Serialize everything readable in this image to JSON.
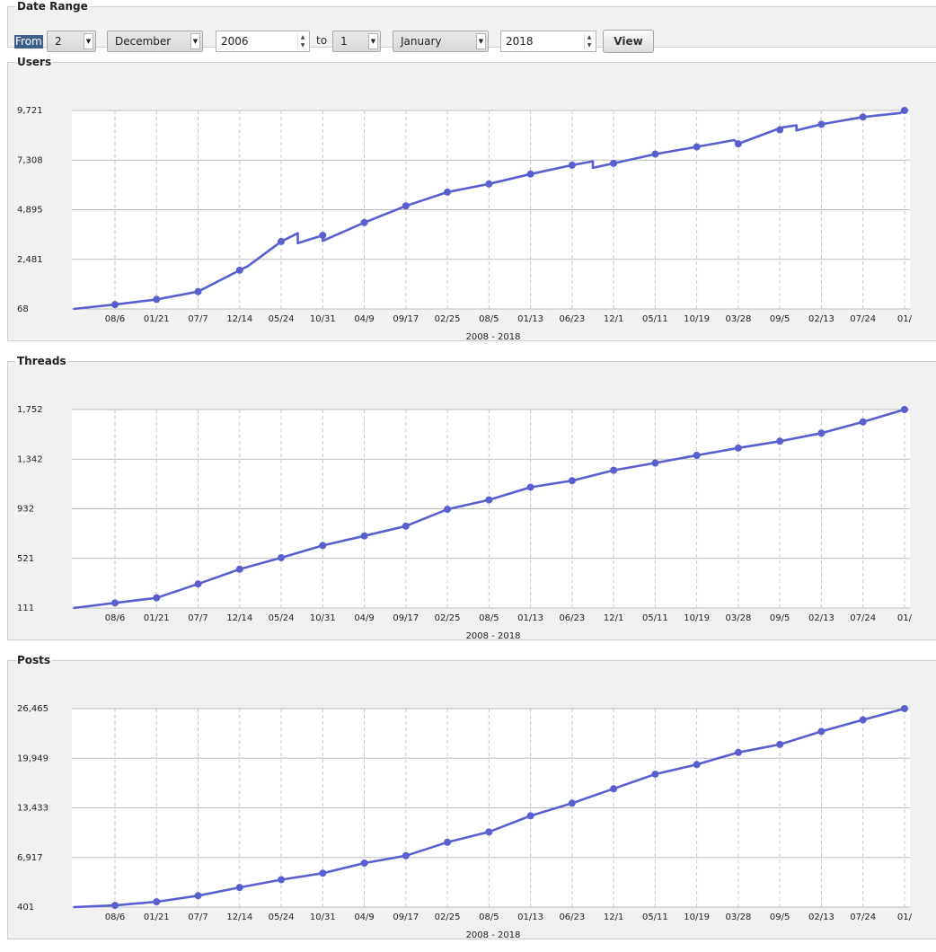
{
  "date_range": {
    "title": "Date Range",
    "from_label": "From",
    "from_day": "2",
    "from_month": "December",
    "from_year": "2006",
    "to_label": "to",
    "to_day": "1",
    "to_month": "January",
    "to_year": "2018",
    "view_label": "View"
  },
  "colors": {
    "series": "#5a5fcf",
    "panel_bg": "#f1f1f1"
  },
  "icons": {
    "dropdown": "chevron-down-icon",
    "spinner": "spin-arrows-icon"
  },
  "chart_data": [
    {
      "type": "line",
      "title": "Users",
      "xlabel": "2008 - 2018",
      "x_ticks": [
        "08/6",
        "01/21",
        "07/7",
        "12/14",
        "05/24",
        "10/31",
        "04/9",
        "09/17",
        "02/25",
        "08/5",
        "01/13",
        "06/23",
        "12/1",
        "05/11",
        "10/19",
        "03/28",
        "09/5",
        "02/13",
        "07/24",
        "01/"
      ],
      "y_ticks": [
        "68",
        "2,481",
        "4,895",
        "7,308",
        "9,721"
      ],
      "ylim": [
        68,
        9721
      ],
      "grid": true,
      "series": [
        {
          "x": [
            -1,
            0,
            1,
            2,
            3,
            3.2,
            4,
            4.4,
            4.4,
            5,
            5,
            6,
            7,
            8,
            9,
            10,
            11,
            11.5,
            11.5,
            12,
            13,
            14,
            14.9,
            15,
            15.9,
            16,
            16.4,
            16.4,
            17,
            18,
            18.9,
            19
          ],
          "y": [
            68,
            280,
            530,
            910,
            1950,
            2150,
            3350,
            3750,
            3270,
            3650,
            3380,
            4270,
            5080,
            5750,
            6150,
            6630,
            7060,
            7250,
            6930,
            7150,
            7600,
            7950,
            8280,
            8100,
            8780,
            8880,
            9000,
            8750,
            9050,
            9400,
            9600,
            9721
          ],
          "markers": [
            [
              0,
              280
            ],
            [
              1,
              530
            ],
            [
              2,
              910
            ],
            [
              3,
              1950
            ],
            [
              4,
              3350
            ],
            [
              5,
              3650
            ],
            [
              6,
              4270
            ],
            [
              7,
              5080
            ],
            [
              8,
              5750
            ],
            [
              9,
              6150
            ],
            [
              10,
              6630
            ],
            [
              11,
              7060
            ],
            [
              12,
              7150
            ],
            [
              13,
              7600
            ],
            [
              14,
              7950
            ],
            [
              15,
              8100
            ],
            [
              16,
              8780
            ],
            [
              17,
              9050
            ],
            [
              18,
              9400
            ],
            [
              19,
              9721
            ]
          ]
        }
      ]
    },
    {
      "type": "line",
      "title": "Threads",
      "xlabel": "2008 - 2018",
      "x_ticks": [
        "08/6",
        "01/21",
        "07/7",
        "12/14",
        "05/24",
        "10/31",
        "04/9",
        "09/17",
        "02/25",
        "08/5",
        "01/13",
        "06/23",
        "12/1",
        "05/11",
        "10/19",
        "03/28",
        "09/5",
        "02/13",
        "07/24",
        "01/"
      ],
      "y_ticks": [
        "111",
        "521",
        "932",
        "1,342",
        "1,752"
      ],
      "ylim": [
        111,
        1752
      ],
      "grid": true,
      "series": [
        {
          "x": [
            -1,
            0,
            1,
            2,
            3,
            4,
            5,
            6,
            7,
            8,
            9,
            10,
            11,
            12,
            13,
            14,
            15,
            16,
            17,
            18,
            19
          ],
          "y": [
            111,
            153,
            195,
            310,
            432,
            527,
            628,
            707,
            788,
            927,
            1005,
            1110,
            1164,
            1250,
            1310,
            1373,
            1434,
            1490,
            1557,
            1650,
            1752
          ],
          "markers": [
            [
              0,
              153
            ],
            [
              1,
              195
            ],
            [
              2,
              310
            ],
            [
              3,
              432
            ],
            [
              4,
              527
            ],
            [
              5,
              628
            ],
            [
              6,
              707
            ],
            [
              7,
              788
            ],
            [
              8,
              927
            ],
            [
              9,
              1005
            ],
            [
              10,
              1110
            ],
            [
              11,
              1164
            ],
            [
              12,
              1250
            ],
            [
              13,
              1310
            ],
            [
              14,
              1373
            ],
            [
              15,
              1434
            ],
            [
              16,
              1490
            ],
            [
              17,
              1557
            ],
            [
              18,
              1650
            ],
            [
              19,
              1752
            ]
          ]
        }
      ]
    },
    {
      "type": "line",
      "title": "Posts",
      "xlabel": "2008 - 2018",
      "x_ticks": [
        "08/6",
        "01/21",
        "07/7",
        "12/14",
        "05/24",
        "10/31",
        "04/9",
        "09/17",
        "02/25",
        "08/5",
        "01/13",
        "06/23",
        "12/1",
        "05/11",
        "10/19",
        "03/28",
        "09/5",
        "02/13",
        "07/24",
        "01/"
      ],
      "y_ticks": [
        "401",
        "6,917",
        "13,433",
        "19,949",
        "26,465"
      ],
      "ylim": [
        401,
        26465
      ],
      "grid": true,
      "series": [
        {
          "x": [
            -1,
            0,
            1,
            2,
            3,
            4,
            5,
            6,
            7,
            8,
            9,
            10,
            11,
            12,
            13,
            14,
            15,
            16,
            17,
            18,
            19
          ],
          "y": [
            401,
            625,
            1100,
            1900,
            2980,
            4000,
            4850,
            6180,
            7150,
            8920,
            10270,
            12380,
            14050,
            15940,
            17860,
            19120,
            20710,
            21760,
            23470,
            24990,
            26465
          ],
          "markers": [
            [
              0,
              625
            ],
            [
              1,
              1100
            ],
            [
              2,
              1900
            ],
            [
              3,
              2980
            ],
            [
              4,
              4000
            ],
            [
              5,
              4850
            ],
            [
              6,
              6180
            ],
            [
              7,
              7150
            ],
            [
              8,
              8920
            ],
            [
              9,
              10270
            ],
            [
              10,
              12380
            ],
            [
              11,
              14050
            ],
            [
              12,
              15940
            ],
            [
              13,
              17860
            ],
            [
              14,
              19120
            ],
            [
              15,
              20710
            ],
            [
              16,
              21760
            ],
            [
              17,
              23470
            ],
            [
              18,
              24990
            ],
            [
              19,
              26465
            ]
          ]
        }
      ]
    }
  ]
}
